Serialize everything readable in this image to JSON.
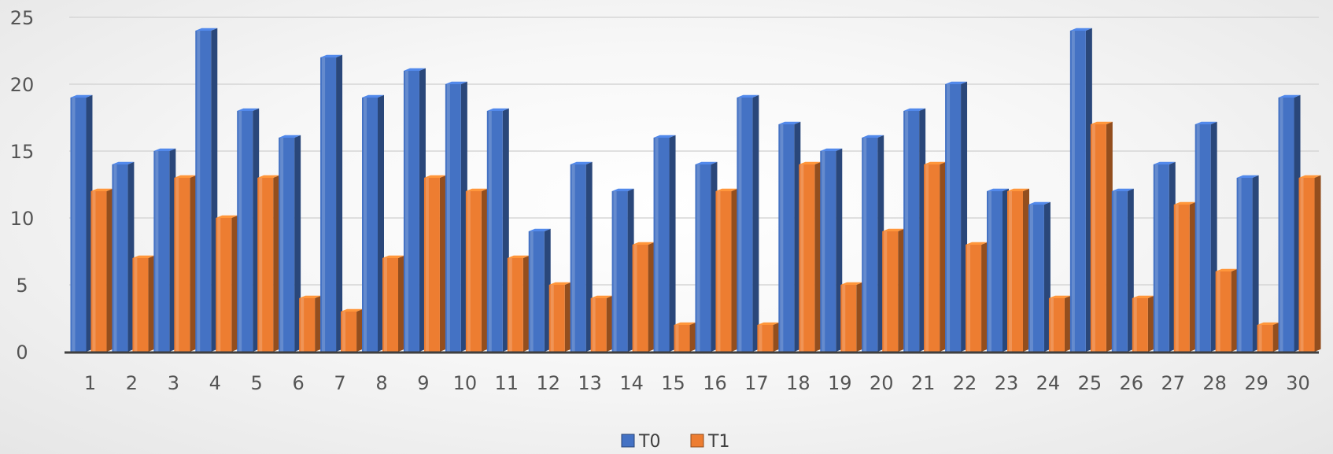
{
  "chart_data": {
    "type": "bar",
    "title": "",
    "xlabel": "",
    "ylabel": "",
    "categories": [
      "1",
      "2",
      "3",
      "4",
      "5",
      "6",
      "7",
      "8",
      "9",
      "10",
      "11",
      "12",
      "13",
      "14",
      "15",
      "16",
      "17",
      "18",
      "19",
      "20",
      "21",
      "22",
      "23",
      "24",
      "25",
      "26",
      "27",
      "28",
      "29",
      "30"
    ],
    "series": [
      {
        "name": "T0",
        "color": "#4472c4",
        "values": [
          19,
          14,
          15,
          24,
          18,
          16,
          22,
          19,
          21,
          20,
          18,
          9,
          14,
          12,
          16,
          14,
          19,
          17,
          15,
          16,
          18,
          20,
          12,
          11,
          24,
          12,
          14,
          17,
          13,
          19
        ]
      },
      {
        "name": "T1",
        "color": "#ed7d31",
        "values": [
          12,
          7,
          13,
          10,
          13,
          4,
          3,
          7,
          13,
          12,
          7,
          5,
          4,
          8,
          2,
          12,
          2,
          14,
          5,
          9,
          14,
          8,
          12,
          4,
          17,
          4,
          11,
          6,
          2,
          13
        ]
      }
    ],
    "ylim": [
      0,
      25
    ],
    "yticks": [
      0,
      5,
      10,
      15,
      20,
      25
    ],
    "grid": true,
    "legend_position": "bottom",
    "style": "3d-clustered-column"
  }
}
